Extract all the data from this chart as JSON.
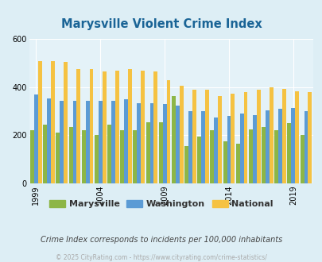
{
  "title": "Marysville Violent Crime Index",
  "title_color": "#1a6496",
  "subtitle": "Crime Index corresponds to incidents per 100,000 inhabitants",
  "subtitle_color": "#444444",
  "footer": "© 2025 CityRating.com - https://www.cityrating.com/crime-statistics/",
  "footer_color": "#aaaaaa",
  "years": [
    1999,
    2000,
    2001,
    2002,
    2003,
    2004,
    2005,
    2006,
    2007,
    2008,
    2009,
    2010,
    2011,
    2012,
    2013,
    2014,
    2015,
    2016,
    2017,
    2018,
    2019,
    2020
  ],
  "marysville": [
    220,
    245,
    210,
    235,
    220,
    200,
    245,
    220,
    220,
    255,
    255,
    365,
    155,
    195,
    220,
    175,
    165,
    225,
    235,
    220,
    250,
    200
  ],
  "washington": [
    370,
    355,
    345,
    345,
    345,
    345,
    345,
    350,
    335,
    335,
    330,
    325,
    300,
    300,
    275,
    280,
    290,
    285,
    305,
    310,
    315,
    300
  ],
  "national": [
    510,
    510,
    505,
    475,
    475,
    465,
    470,
    475,
    470,
    465,
    430,
    405,
    390,
    390,
    365,
    375,
    380,
    390,
    400,
    395,
    385,
    380
  ],
  "marysville_color": "#8db646",
  "washington_color": "#5b9bd5",
  "national_color": "#f5c242",
  "bg_color": "#ddeef5",
  "plot_bg": "#e4f2f8",
  "ylim": [
    0,
    600
  ],
  "yticks": [
    0,
    200,
    400,
    600
  ],
  "xtick_years": [
    1999,
    2004,
    2009,
    2014,
    2019
  ]
}
